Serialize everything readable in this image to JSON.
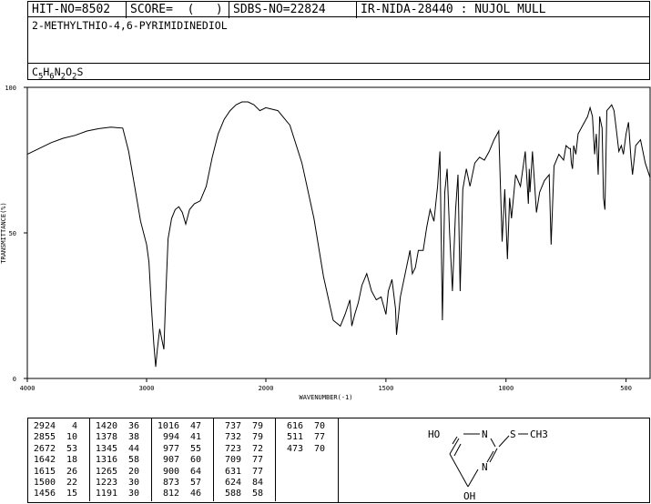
{
  "header": {
    "hit_no": "HIT-NO=8502",
    "score": "SCORE=  (   )",
    "sdbs_no": "SDBS-NO=22824",
    "ir_code": "IR-NIDA-28440 : NUJOL MULL",
    "compound_name": "2-METHYLTHIO-4,6-PYRIMIDINEDIOL",
    "formula": "C5H6N2O2S"
  },
  "structure": {
    "labels": [
      "HO",
      "N",
      "S",
      "CH3",
      "N",
      "OH"
    ]
  },
  "peak_table": [
    [
      [
        2924,
        4
      ],
      [
        2855,
        10
      ],
      [
        2672,
        53
      ],
      [
        1642,
        18
      ],
      [
        1615,
        26
      ],
      [
        1500,
        22
      ],
      [
        1456,
        15
      ]
    ],
    [
      [
        1420,
        36
      ],
      [
        1378,
        38
      ],
      [
        1345,
        44
      ],
      [
        1316,
        58
      ],
      [
        1265,
        20
      ],
      [
        1223,
        30
      ],
      [
        1191,
        30
      ]
    ],
    [
      [
        1016,
        47
      ],
      [
        994,
        41
      ],
      [
        977,
        55
      ],
      [
        907,
        60
      ],
      [
        900,
        64
      ],
      [
        873,
        57
      ],
      [
        812,
        46
      ]
    ],
    [
      [
        737,
        79
      ],
      [
        732,
        79
      ],
      [
        723,
        72
      ],
      [
        709,
        77
      ],
      [
        631,
        77
      ],
      [
        624,
        84
      ],
      [
        588,
        58
      ]
    ],
    [
      [
        616,
        70
      ],
      [
        511,
        77
      ],
      [
        473,
        70
      ]
    ]
  ],
  "chart_data": {
    "type": "line",
    "title": "",
    "xlabel": "WAVENUMBER(-1)",
    "ylabel": "TRANSMITTANCE(%)",
    "xlim": [
      4000,
      400
    ],
    "ylim": [
      0,
      100
    ],
    "x_ticks": [
      4000,
      3000,
      2000,
      1500,
      1000,
      500
    ],
    "y_ticks": [
      0,
      50,
      100
    ],
    "x_tick_labels": [
      "4000",
      "3000",
      "2000",
      "1500",
      "1000",
      "500"
    ],
    "y_tick_labels": [
      "0",
      "50",
      "100"
    ],
    "grid": false,
    "series": [
      {
        "x": [
          4000,
          3900,
          3800,
          3700,
          3600,
          3500,
          3400,
          3300,
          3200,
          3150,
          3100,
          3050,
          3000,
          2980,
          2960,
          2940,
          2924,
          2910,
          2890,
          2870,
          2855,
          2840,
          2820,
          2790,
          2760,
          2730,
          2700,
          2672,
          2640,
          2600,
          2550,
          2500,
          2450,
          2400,
          2350,
          2300,
          2250,
          2200,
          2150,
          2100,
          2050,
          2000,
          1950,
          1900,
          1850,
          1800,
          1760,
          1720,
          1690,
          1670,
          1650,
          1642,
          1630,
          1615,
          1600,
          1580,
          1560,
          1540,
          1520,
          1500,
          1490,
          1475,
          1460,
          1456,
          1440,
          1420,
          1400,
          1390,
          1378,
          1365,
          1345,
          1330,
          1316,
          1300,
          1285,
          1275,
          1265,
          1255,
          1245,
          1235,
          1223,
          1210,
          1200,
          1191,
          1180,
          1165,
          1150,
          1130,
          1110,
          1090,
          1070,
          1050,
          1030,
          1016,
          1005,
          994,
          985,
          977,
          960,
          940,
          920,
          907,
          903,
          900,
          890,
          873,
          860,
          840,
          820,
          812,
          800,
          780,
          760,
          750,
          737,
          732,
          728,
          723,
          718,
          709,
          700,
          680,
          660,
          650,
          640,
          631,
          624,
          616,
          610,
          600,
          594,
          588,
          580,
          570,
          560,
          550,
          540,
          530,
          520,
          511,
          500,
          490,
          480,
          473,
          460,
          440,
          420,
          400
        ],
        "y": [
          77,
          79,
          81,
          82.5,
          83.5,
          85,
          85.8,
          86.3,
          86,
          78,
          66,
          54,
          46,
          40,
          25,
          12,
          4,
          10,
          17,
          13,
          10,
          28,
          48,
          55,
          58,
          59,
          57,
          53,
          58,
          60,
          61,
          66,
          76,
          84,
          89,
          92,
          94,
          95,
          95,
          94,
          92,
          93,
          92,
          87,
          74,
          55,
          35,
          20,
          18,
          22,
          27,
          18,
          22,
          26,
          32,
          36,
          30,
          27,
          28,
          22,
          30,
          34,
          24,
          15,
          28,
          36,
          44,
          36,
          38,
          44,
          44,
          52,
          58,
          54,
          66,
          78,
          20,
          64,
          72,
          50,
          30,
          58,
          70,
          30,
          65,
          72,
          66,
          74,
          76,
          75,
          78,
          82,
          85,
          47,
          65,
          41,
          62,
          55,
          70,
          66,
          78,
          60,
          72,
          64,
          78,
          57,
          64,
          68,
          70,
          46,
          73,
          77,
          75,
          80,
          79,
          79,
          74,
          72,
          80,
          77,
          84,
          87,
          90,
          93,
          90,
          77,
          84,
          70,
          90,
          86,
          62,
          58,
          92,
          93,
          94,
          92,
          85,
          78,
          80,
          77,
          84,
          88,
          76,
          70,
          80,
          82,
          74,
          69
        ]
      }
    ]
  }
}
